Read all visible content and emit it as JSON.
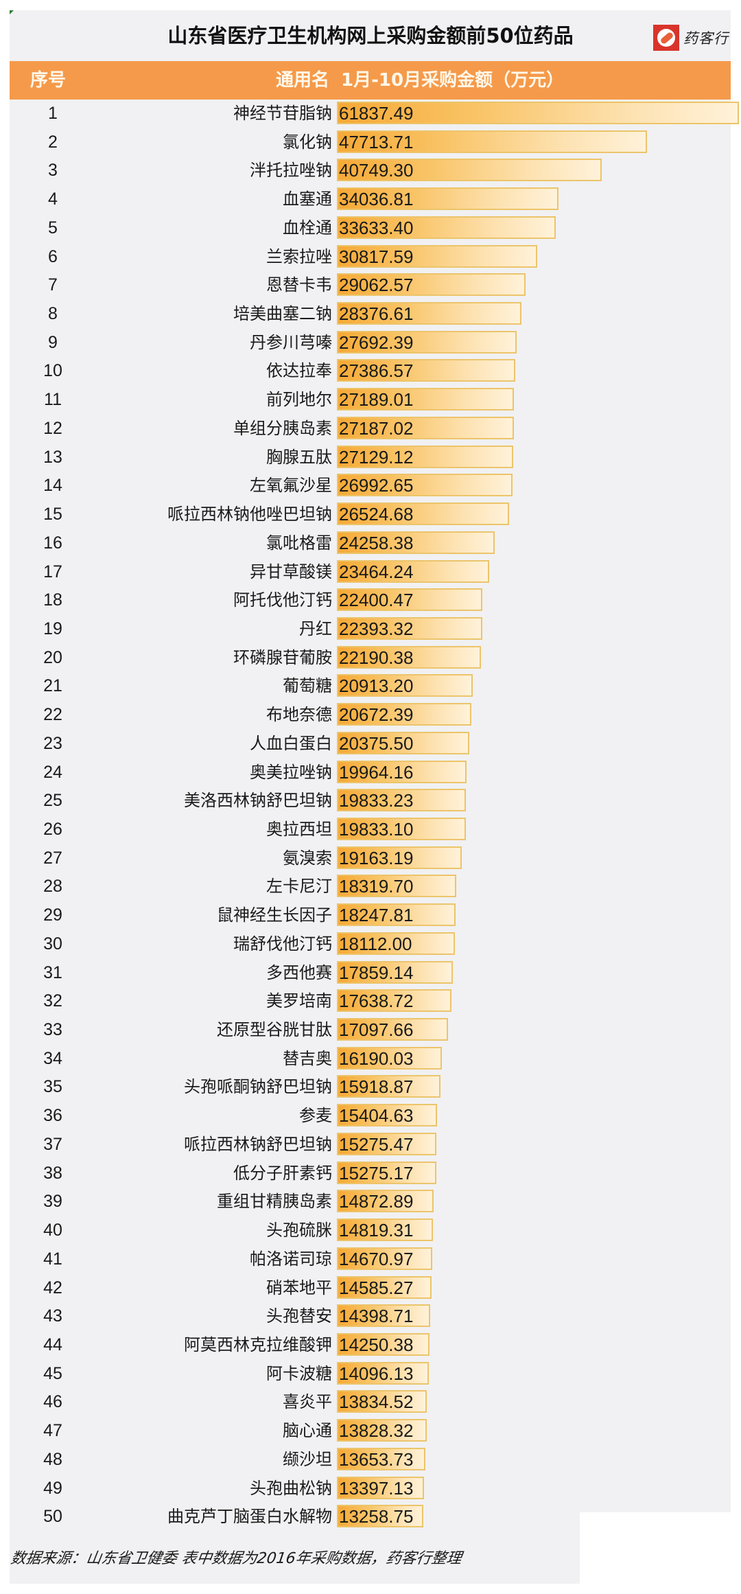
{
  "title": "山东省医疗卫生机构网上采购金额前50位药品",
  "logo": {
    "icon": "pill-icon",
    "text": "药客行",
    "color": "#d9342b"
  },
  "header": {
    "rank_label": "序号",
    "name_label": "通用名",
    "amount_label": "1月-10月采购金额（万元）"
  },
  "footer": "数据来源：山东省卫健委 表中数据为2016年采购数据，药客行整理",
  "colors": {
    "header": "#f59a4a",
    "bar_start": "#f6a936",
    "bar_end": "#fff2da",
    "bar_border": "#ecc46a",
    "panel": "#f1f1f3"
  },
  "rows": [
    {
      "rank": "1",
      "name": "神经节苷脂钠",
      "value": "61837.49"
    },
    {
      "rank": "2",
      "name": "氯化钠",
      "value": "47713.71"
    },
    {
      "rank": "3",
      "name": "泮托拉唑钠",
      "value": "40749.30"
    },
    {
      "rank": "4",
      "name": "血塞通",
      "value": "34036.81"
    },
    {
      "rank": "5",
      "name": "血栓通",
      "value": "33633.40"
    },
    {
      "rank": "6",
      "name": "兰索拉唑",
      "value": "30817.59"
    },
    {
      "rank": "7",
      "name": "恩替卡韦",
      "value": "29062.57"
    },
    {
      "rank": "8",
      "name": "培美曲塞二钠",
      "value": "28376.61"
    },
    {
      "rank": "9",
      "name": "丹参川芎嗪",
      "value": "27692.39"
    },
    {
      "rank": "10",
      "name": "依达拉奉",
      "value": "27386.57"
    },
    {
      "rank": "11",
      "name": "前列地尔",
      "value": "27189.01"
    },
    {
      "rank": "12",
      "name": "单组分胰岛素",
      "value": "27187.02"
    },
    {
      "rank": "13",
      "name": "胸腺五肽",
      "value": "27129.12"
    },
    {
      "rank": "14",
      "name": "左氧氟沙星",
      "value": "26992.65"
    },
    {
      "rank": "15",
      "name": "哌拉西林钠他唑巴坦钠",
      "value": "26524.68"
    },
    {
      "rank": "16",
      "name": "氯吡格雷",
      "value": "24258.38"
    },
    {
      "rank": "17",
      "name": "异甘草酸镁",
      "value": "23464.24"
    },
    {
      "rank": "18",
      "name": "阿托伐他汀钙",
      "value": "22400.47"
    },
    {
      "rank": "19",
      "name": "丹红",
      "value": "22393.32"
    },
    {
      "rank": "20",
      "name": "环磷腺苷葡胺",
      "value": "22190.38"
    },
    {
      "rank": "21",
      "name": "葡萄糖",
      "value": "20913.20"
    },
    {
      "rank": "22",
      "name": "布地奈德",
      "value": "20672.39"
    },
    {
      "rank": "23",
      "name": "人血白蛋白",
      "value": "20375.50"
    },
    {
      "rank": "24",
      "name": "奥美拉唑钠",
      "value": "19964.16"
    },
    {
      "rank": "25",
      "name": "美洛西林钠舒巴坦钠",
      "value": "19833.23"
    },
    {
      "rank": "26",
      "name": "奥拉西坦",
      "value": "19833.10"
    },
    {
      "rank": "27",
      "name": "氨溴索",
      "value": "19163.19"
    },
    {
      "rank": "28",
      "name": "左卡尼汀",
      "value": "18319.70"
    },
    {
      "rank": "29",
      "name": "鼠神经生长因子",
      "value": "18247.81"
    },
    {
      "rank": "30",
      "name": "瑞舒伐他汀钙",
      "value": "18112.00"
    },
    {
      "rank": "31",
      "name": "多西他赛",
      "value": "17859.14"
    },
    {
      "rank": "32",
      "name": "美罗培南",
      "value": "17638.72"
    },
    {
      "rank": "33",
      "name": "还原型谷胱甘肽",
      "value": "17097.66"
    },
    {
      "rank": "34",
      "name": "替吉奥",
      "value": "16190.03"
    },
    {
      "rank": "35",
      "name": "头孢哌酮钠舒巴坦钠",
      "value": "15918.87"
    },
    {
      "rank": "36",
      "name": "参麦",
      "value": "15404.63"
    },
    {
      "rank": "37",
      "name": "哌拉西林钠舒巴坦钠",
      "value": "15275.47"
    },
    {
      "rank": "38",
      "name": "低分子肝素钙",
      "value": "15275.17"
    },
    {
      "rank": "39",
      "name": "重组甘精胰岛素",
      "value": "14872.89"
    },
    {
      "rank": "40",
      "name": "头孢硫脒",
      "value": "14819.31"
    },
    {
      "rank": "41",
      "name": "帕洛诺司琼",
      "value": "14670.97"
    },
    {
      "rank": "42",
      "name": "硝苯地平",
      "value": "14585.27"
    },
    {
      "rank": "43",
      "name": "头孢替安",
      "value": "14398.71"
    },
    {
      "rank": "44",
      "name": "阿莫西林克拉维酸钾",
      "value": "14250.38"
    },
    {
      "rank": "45",
      "name": "阿卡波糖",
      "value": "14096.13"
    },
    {
      "rank": "46",
      "name": "喜炎平",
      "value": "13834.52"
    },
    {
      "rank": "47",
      "name": "脑心通",
      "value": "13828.32"
    },
    {
      "rank": "48",
      "name": "缬沙坦",
      "value": "13653.73"
    },
    {
      "rank": "49",
      "name": "头孢曲松钠",
      "value": "13397.13"
    },
    {
      "rank": "50",
      "name": "曲克芦丁脑蛋白水解物",
      "value": "13258.75"
    }
  ],
  "chart_data": {
    "type": "bar",
    "orientation": "horizontal",
    "title": "山东省医疗卫生机构网上采购金额前50位药品",
    "xlabel": "1月-10月采购金额（万元）",
    "ylabel": "通用名",
    "grid": false,
    "data_labels": true,
    "categories": [
      "神经节苷脂钠",
      "氯化钠",
      "泮托拉唑钠",
      "血塞通",
      "血栓通",
      "兰索拉唑",
      "恩替卡韦",
      "培美曲塞二钠",
      "丹参川芎嗪",
      "依达拉奉",
      "前列地尔",
      "单组分胰岛素",
      "胸腺五肽",
      "左氧氟沙星",
      "哌拉西林钠他唑巴坦钠",
      "氯吡格雷",
      "异甘草酸镁",
      "阿托伐他汀钙",
      "丹红",
      "环磷腺苷葡胺",
      "葡萄糖",
      "布地奈德",
      "人血白蛋白",
      "奥美拉唑钠",
      "美洛西林钠舒巴坦钠",
      "奥拉西坦",
      "氨溴索",
      "左卡尼汀",
      "鼠神经生长因子",
      "瑞舒伐他汀钙",
      "多西他赛",
      "美罗培南",
      "还原型谷胱甘肽",
      "替吉奥",
      "头孢哌酮钠舒巴坦钠",
      "参麦",
      "哌拉西林钠舒巴坦钠",
      "低分子肝素钙",
      "重组甘精胰岛素",
      "头孢硫脒",
      "帕洛诺司琼",
      "硝苯地平",
      "头孢替安",
      "阿莫西林克拉维酸钾",
      "阿卡波糖",
      "喜炎平",
      "脑心通",
      "缬沙坦",
      "头孢曲松钠",
      "曲克芦丁脑蛋白水解物"
    ],
    "values": [
      61837.49,
      47713.71,
      40749.3,
      34036.81,
      33633.4,
      30817.59,
      29062.57,
      28376.61,
      27692.39,
      27386.57,
      27189.01,
      27187.02,
      27129.12,
      26992.65,
      26524.68,
      24258.38,
      23464.24,
      22400.47,
      22393.32,
      22190.38,
      20913.2,
      20672.39,
      20375.5,
      19964.16,
      19833.23,
      19833.1,
      19163.19,
      18319.7,
      18247.81,
      18112.0,
      17859.14,
      17638.72,
      17097.66,
      16190.03,
      15918.87,
      15404.63,
      15275.47,
      15275.17,
      14872.89,
      14819.31,
      14670.97,
      14585.27,
      14398.71,
      14250.38,
      14096.13,
      13834.52,
      13828.32,
      13653.73,
      13397.13,
      13258.75
    ],
    "xlim": [
      0,
      61837.49
    ],
    "note": "数据来源：山东省卫健委 表中数据为2016年采购数据，药客行整理"
  }
}
